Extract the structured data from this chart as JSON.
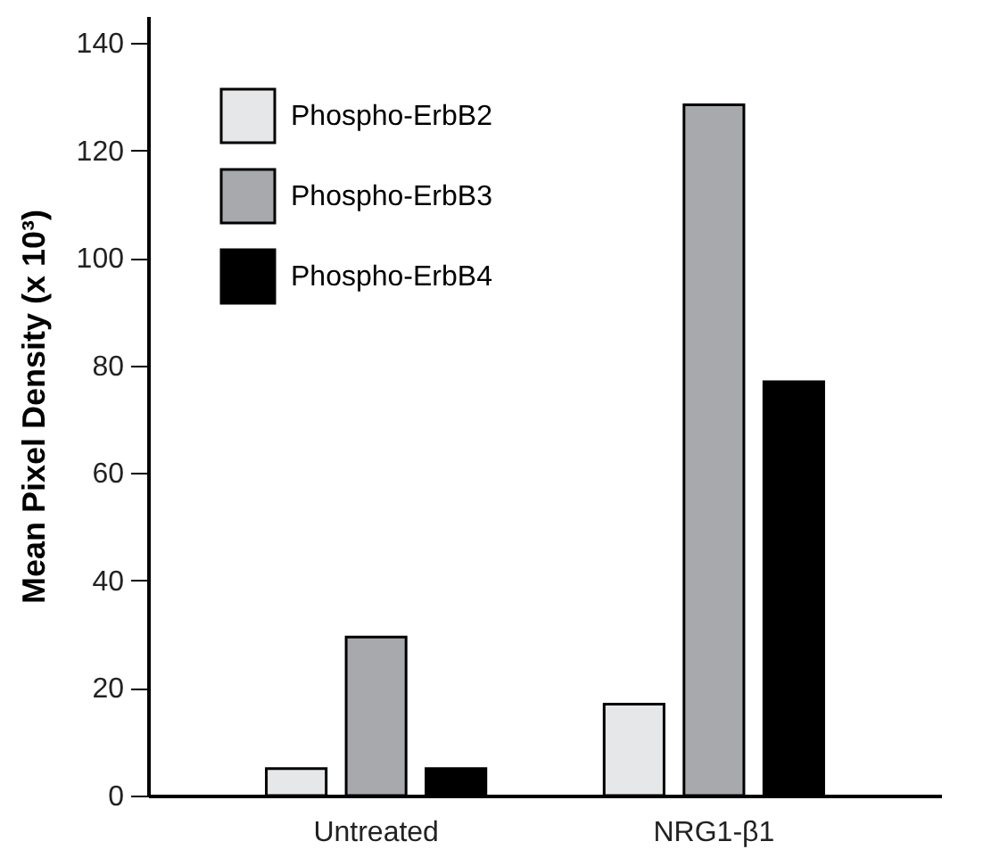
{
  "chart_data": {
    "type": "bar",
    "ylabel": "Mean Pixel Density (x 10³)",
    "categories": [
      "Untreated",
      "NRG1-β1"
    ],
    "series": [
      {
        "name": "Phospho-ErbB2",
        "color": "#e6e7e8",
        "values": [
          5,
          17
        ]
      },
      {
        "name": "Phospho-ErbB3",
        "color": "#a7a9ac",
        "values": [
          29.5,
          128.5
        ]
      },
      {
        "name": "Phospho-ErbB4",
        "color": "#000000",
        "values": [
          5,
          77
        ]
      }
    ],
    "ylim": [
      0,
      145
    ],
    "yticks": [
      0,
      20,
      40,
      60,
      80,
      100,
      120,
      140
    ],
    "grid": false,
    "legend": "top left"
  }
}
